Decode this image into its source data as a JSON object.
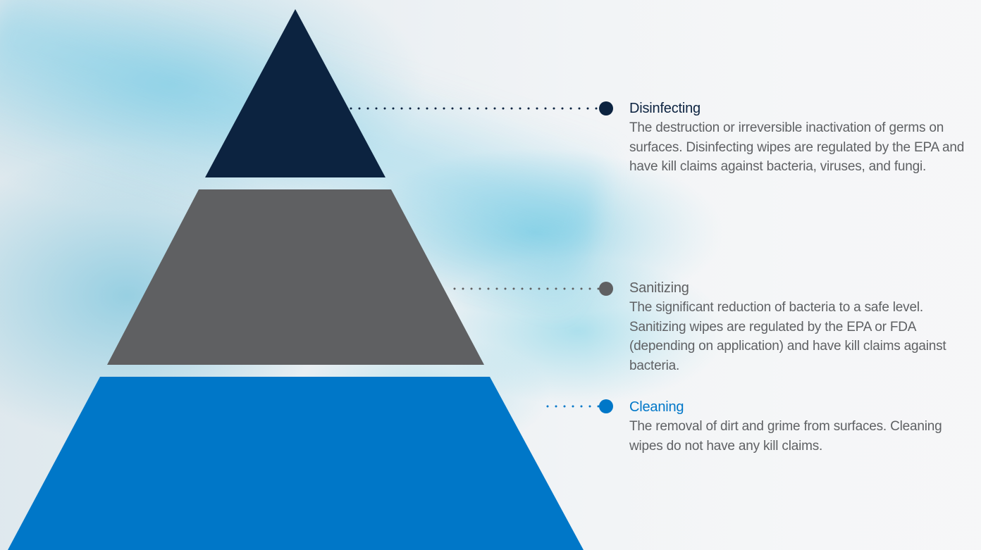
{
  "colors": {
    "disinfecting": "#0c2340",
    "sanitizing": "#5f6062",
    "cleaning": "#0077c8",
    "description_text": "#5f6164"
  },
  "tiers": [
    {
      "key": "disinfecting",
      "title": "Disinfecting",
      "description": "The destruction or irreversible inactivation of germs on surfaces. Disinfecting wipes are regulated by the EPA and have kill claims against bacteria, viruses, and fungi."
    },
    {
      "key": "sanitizing",
      "title": "Sanitizing",
      "description": "The significant reduction of bacteria to a safe level. Sanitizing wipes are regulated by the EPA or FDA (depending on application) and have kill claims against bacteria."
    },
    {
      "key": "cleaning",
      "title": "Cleaning",
      "description": "The removal of dirt and grime from surfaces. Cleaning wipes do not have any kill claims."
    }
  ]
}
